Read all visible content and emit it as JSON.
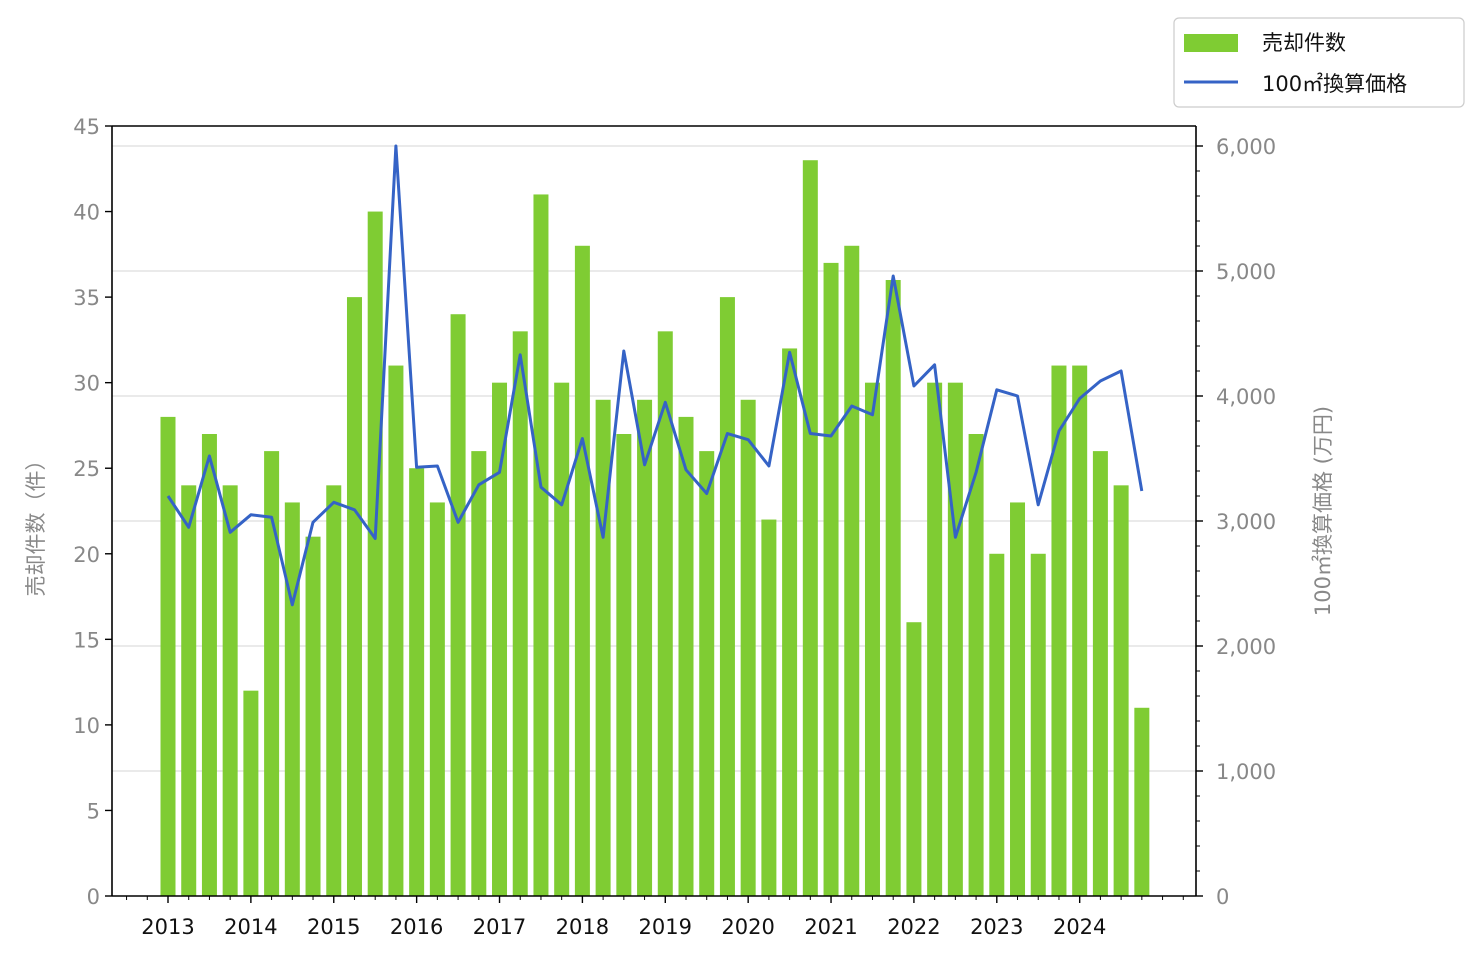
{
  "chart_data": {
    "type": "bar",
    "left_axis": {
      "label": "売却件数（件）",
      "ylim": [
        0,
        45
      ],
      "ticks": [
        0,
        5,
        10,
        15,
        20,
        25,
        30,
        35,
        40,
        45
      ],
      "tick_labels": [
        "0",
        "5",
        "10",
        "15",
        "20",
        "25",
        "30",
        "35",
        "40",
        "45"
      ]
    },
    "right_axis": {
      "label": "100㎡換算価格 (万円)",
      "ylim": [
        0,
        6160
      ],
      "ticks": [
        0,
        1000,
        2000,
        3000,
        4000,
        5000,
        6000
      ],
      "tick_labels": [
        "0",
        "1,000",
        "2,000",
        "3,000",
        "4,000",
        "5,000",
        "6,000"
      ]
    },
    "x_axis": {
      "tick_labels": [
        "2013",
        "2014",
        "2015",
        "2016",
        "2017",
        "2018",
        "2019",
        "2020",
        "2021",
        "2022",
        "2023",
        "2024"
      ],
      "first_year": 2013,
      "periods_per_year": 4
    },
    "grid": "horizontal lines at right-axis ticks",
    "legend": {
      "position": "top-right, outside plot",
      "bar_label": "売却件数",
      "line_label": "100㎡換算価格"
    },
    "colors": {
      "bar": "#7fcc33",
      "line": "#3563c6",
      "grid": "#dddddd",
      "axis": "#000000"
    },
    "series": [
      {
        "name": "売却件数",
        "type": "bar",
        "axis": "left",
        "values": [
          28,
          24,
          27,
          24,
          12,
          26,
          23,
          21,
          24,
          35,
          40,
          31,
          25,
          23,
          34,
          26,
          30,
          33,
          41,
          30,
          38,
          29,
          27,
          29,
          33,
          28,
          26,
          35,
          29,
          22,
          32,
          43,
          37,
          38,
          30,
          36,
          16,
          30,
          30,
          27,
          20,
          23,
          20,
          31,
          31,
          26,
          24,
          11
        ]
      },
      {
        "name": "100㎡換算価格",
        "type": "line",
        "axis": "right",
        "values": [
          3200,
          2950,
          3520,
          2910,
          3050,
          3030,
          2330,
          2990,
          3150,
          3090,
          2860,
          6000,
          3430,
          3440,
          2990,
          3290,
          3390,
          4330,
          3270,
          3130,
          3660,
          2870,
          4360,
          3450,
          3950,
          3410,
          3220,
          3700,
          3650,
          3440,
          4350,
          3700,
          3680,
          3920,
          3850,
          4960,
          4080,
          4250,
          2870,
          3390,
          4050,
          4000,
          3130,
          3720,
          3980,
          4120,
          4200,
          3240
        ]
      }
    ]
  }
}
